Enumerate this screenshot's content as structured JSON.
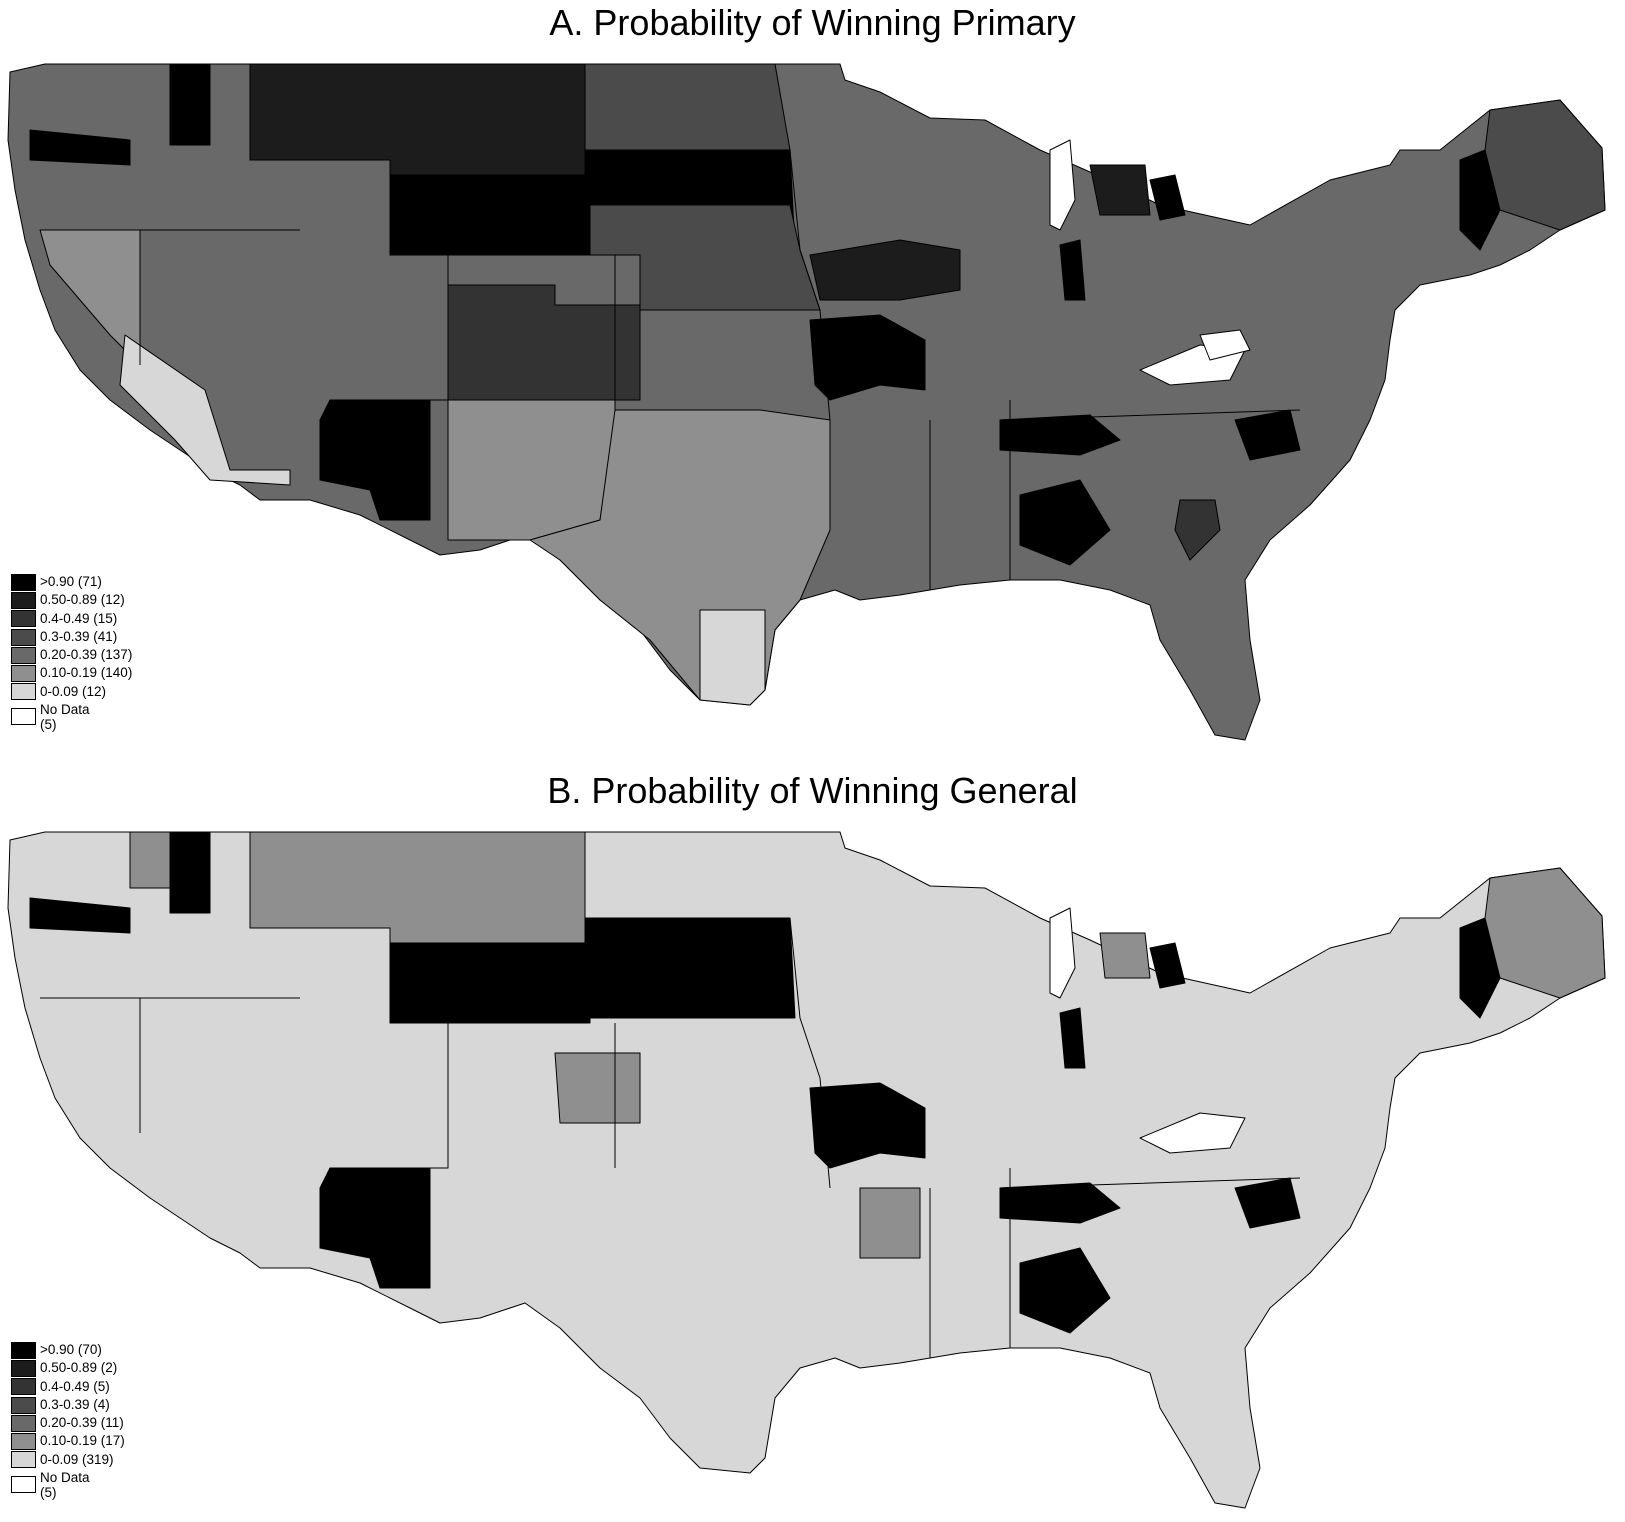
{
  "figure": {
    "panels": [
      {
        "id": "A",
        "title": "A. Probability of Winning Primary",
        "legend": [
          {
            "label": ">0.90 (71)",
            "color": "#000000"
          },
          {
            "label": "0.50-0.89 (12)",
            "color": "#1c1c1c"
          },
          {
            "label": "0.4-0.49 (15)",
            "color": "#333333"
          },
          {
            "label": "0.3-0.39 (41)",
            "color": "#4b4b4b"
          },
          {
            "label": "0.20-0.39 (137)",
            "color": "#696969"
          },
          {
            "label": "0.10-0.19 (140)",
            "color": "#8f8f8f"
          },
          {
            "label": "0-0.09 (12)",
            "color": "#d7d7d7"
          }
        ],
        "no_data": {
          "label": "No Data",
          "count": "(5)",
          "color": "#ffffff"
        }
      },
      {
        "id": "B",
        "title": "B. Probability of Winning General",
        "legend": [
          {
            "label": ">0.90 (70)",
            "color": "#000000"
          },
          {
            "label": "0.50-0.89 (2)",
            "color": "#1c1c1c"
          },
          {
            "label": "0.4-0.49 (5)",
            "color": "#333333"
          },
          {
            "label": "0.3-0.39 (4)",
            "color": "#4b4b4b"
          },
          {
            "label": "0.20-0.39 (11)",
            "color": "#696969"
          },
          {
            "label": "0.10-0.19 (17)",
            "color": "#8f8f8f"
          },
          {
            "label": "0-0.09 (319)",
            "color": "#d7d7d7"
          }
        ],
        "no_data": {
          "label": "No Data",
          "count": "(5)",
          "color": "#ffffff"
        }
      }
    ]
  }
}
